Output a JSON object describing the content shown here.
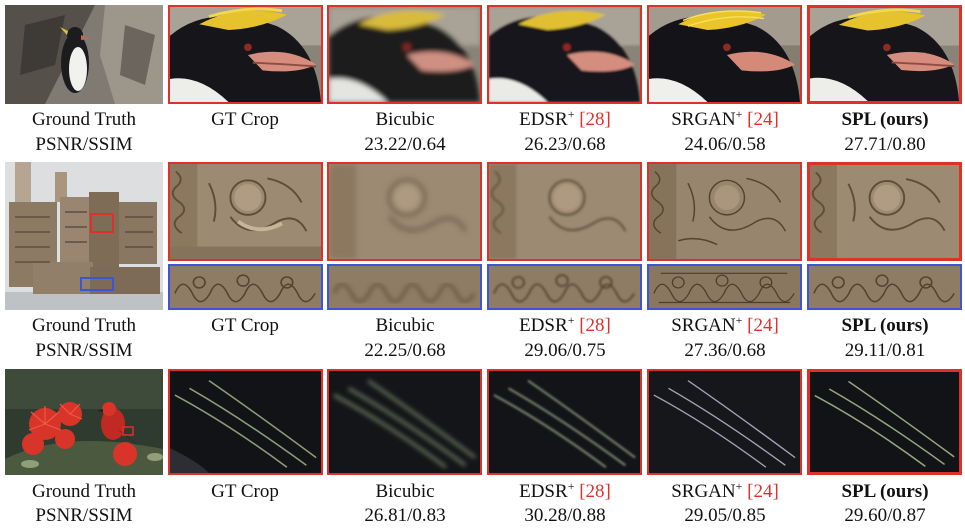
{
  "rows": [
    {
      "labels": [
        "Ground Truth",
        "GT Crop",
        "Bicubic",
        "EDSR",
        "SRGAN",
        "SPL (ours)"
      ],
      "scores": [
        "PSNR/SSIM",
        "",
        "23.22/0.64",
        "26.23/0.68",
        "24.06/0.58",
        "27.71/0.80"
      ]
    },
    {
      "labels": [
        "Ground Truth",
        "GT Crop",
        "Bicubic",
        "EDSR",
        "SRGAN",
        "SPL (ours)"
      ],
      "scores": [
        "PSNR/SSIM",
        "",
        "22.25/0.68",
        "29.06/0.75",
        "27.36/0.68",
        "29.11/0.81"
      ]
    },
    {
      "labels": [
        "Ground Truth",
        "GT Crop",
        "Bicubic",
        "EDSR",
        "SRGAN",
        "SPL (ours)"
      ],
      "scores": [
        "PSNR/SSIM",
        "",
        "26.81/0.83",
        "30.28/0.88",
        "29.05/0.85",
        "29.60/0.87"
      ]
    }
  ],
  "method_sup": "+",
  "cite_edsr": "[28]",
  "cite_srgan": "[24]",
  "colors": {
    "crop_box_primary": "#e0302a",
    "crop_box_secondary": "#3b55d6",
    "citation": "#e0302a"
  }
}
